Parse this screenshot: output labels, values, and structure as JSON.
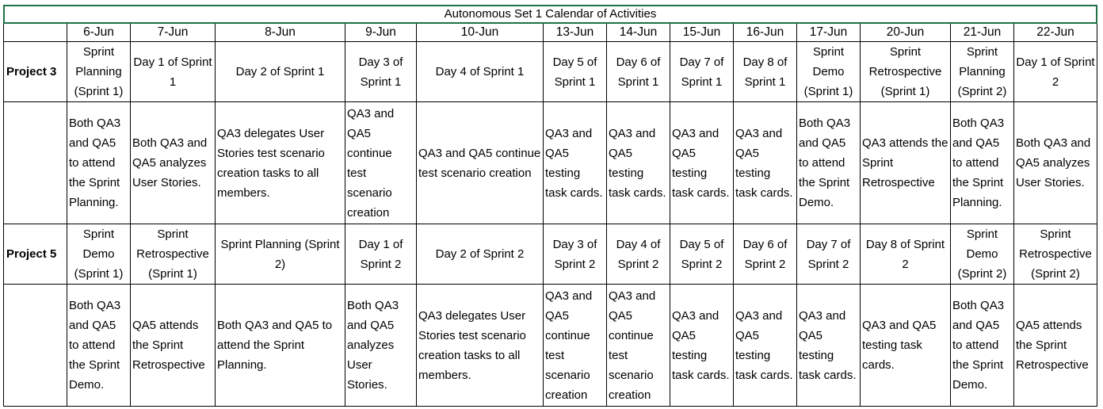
{
  "title": "Autonomous Set 1 Calendar of Activities",
  "dates": [
    "6-Jun",
    "7-Jun",
    "8-Jun",
    "9-Jun",
    "10-Jun",
    "13-Jun",
    "14-Jun",
    "15-Jun",
    "16-Jun",
    "17-Jun",
    "20-Jun",
    "21-Jun",
    "22-Jun"
  ],
  "projects": [
    {
      "name": "Project 3",
      "sprint_days": [
        "Sprint Planning (Sprint 1)",
        "Day 1 of Sprint 1",
        "Day 2 of Sprint 1",
        "Day 3 of Sprint 1",
        "Day 4 of Sprint 1",
        "Day 5 of Sprint 1",
        "Day 6 of Sprint 1",
        "Day 7 of Sprint 1",
        "Day 8 of Sprint 1",
        "Sprint Demo (Sprint 1)",
        "Sprint Retrospective (Sprint 1)",
        "Sprint Planning (Sprint 2)",
        "Day 1 of Sprint 2"
      ],
      "tasks": [
        "Both QA3 and QA5 to attend the Sprint Planning.",
        "Both QA3 and QA5 analyzes User Stories.",
        "QA3 delegates User Stories test scenario creation tasks to all members.",
        "QA3 and QA5 continue test scenario creation",
        "QA3 and QA5 continue test scenario creation",
        "QA3 and QA5 testing task cards.",
        "QA3 and QA5 testing task cards.",
        "QA3 and QA5 testing task cards.",
        "QA3 and QA5 testing task cards.",
        "Both QA3 and QA5 to attend the Sprint Demo.",
        "QA3 attends the Sprint Retrospective",
        "Both QA3 and QA5 to attend the Sprint Planning.",
        "Both QA3 and QA5 analyzes User Stories."
      ]
    },
    {
      "name": "Project 5",
      "sprint_days": [
        "Sprint Demo (Sprint 1)",
        "Sprint Retrospective (Sprint 1)",
        "Sprint Planning (Sprint 2)",
        "Day 1 of Sprint 2",
        "Day 2 of Sprint 2",
        "Day 3 of Sprint 2",
        "Day 4 of Sprint 2",
        "Day 5 of Sprint 2",
        "Day 6 of Sprint 2",
        "Day 7 of Sprint 2",
        "Day 8 of Sprint 2",
        "Sprint Demo (Sprint 2)",
        "Sprint Retrospective (Sprint 2)"
      ],
      "tasks": [
        "Both QA3 and QA5 to attend the Sprint Demo.",
        "QA5 attends the Sprint Retrospective",
        "Both QA3 and QA5 to attend the Sprint Planning.",
        "Both QA3 and QA5 analyzes User Stories.",
        "QA3 delegates User Stories test scenario creation tasks to all members.",
        "QA3 and QA5 continue test scenario creation",
        "QA3 and QA5 continue test scenario creation",
        "QA3 and QA5 testing task cards.",
        "QA3 and QA5 testing task cards.",
        "QA3 and QA5 testing task cards.",
        "QA3 and QA5 testing task cards.",
        "Both QA3 and QA5 to attend the Sprint Demo.",
        "QA5 attends the Sprint Retrospective"
      ]
    }
  ],
  "colors": {
    "title_border": "#1e7145",
    "grid": "#000000",
    "background": "#ffffff"
  }
}
